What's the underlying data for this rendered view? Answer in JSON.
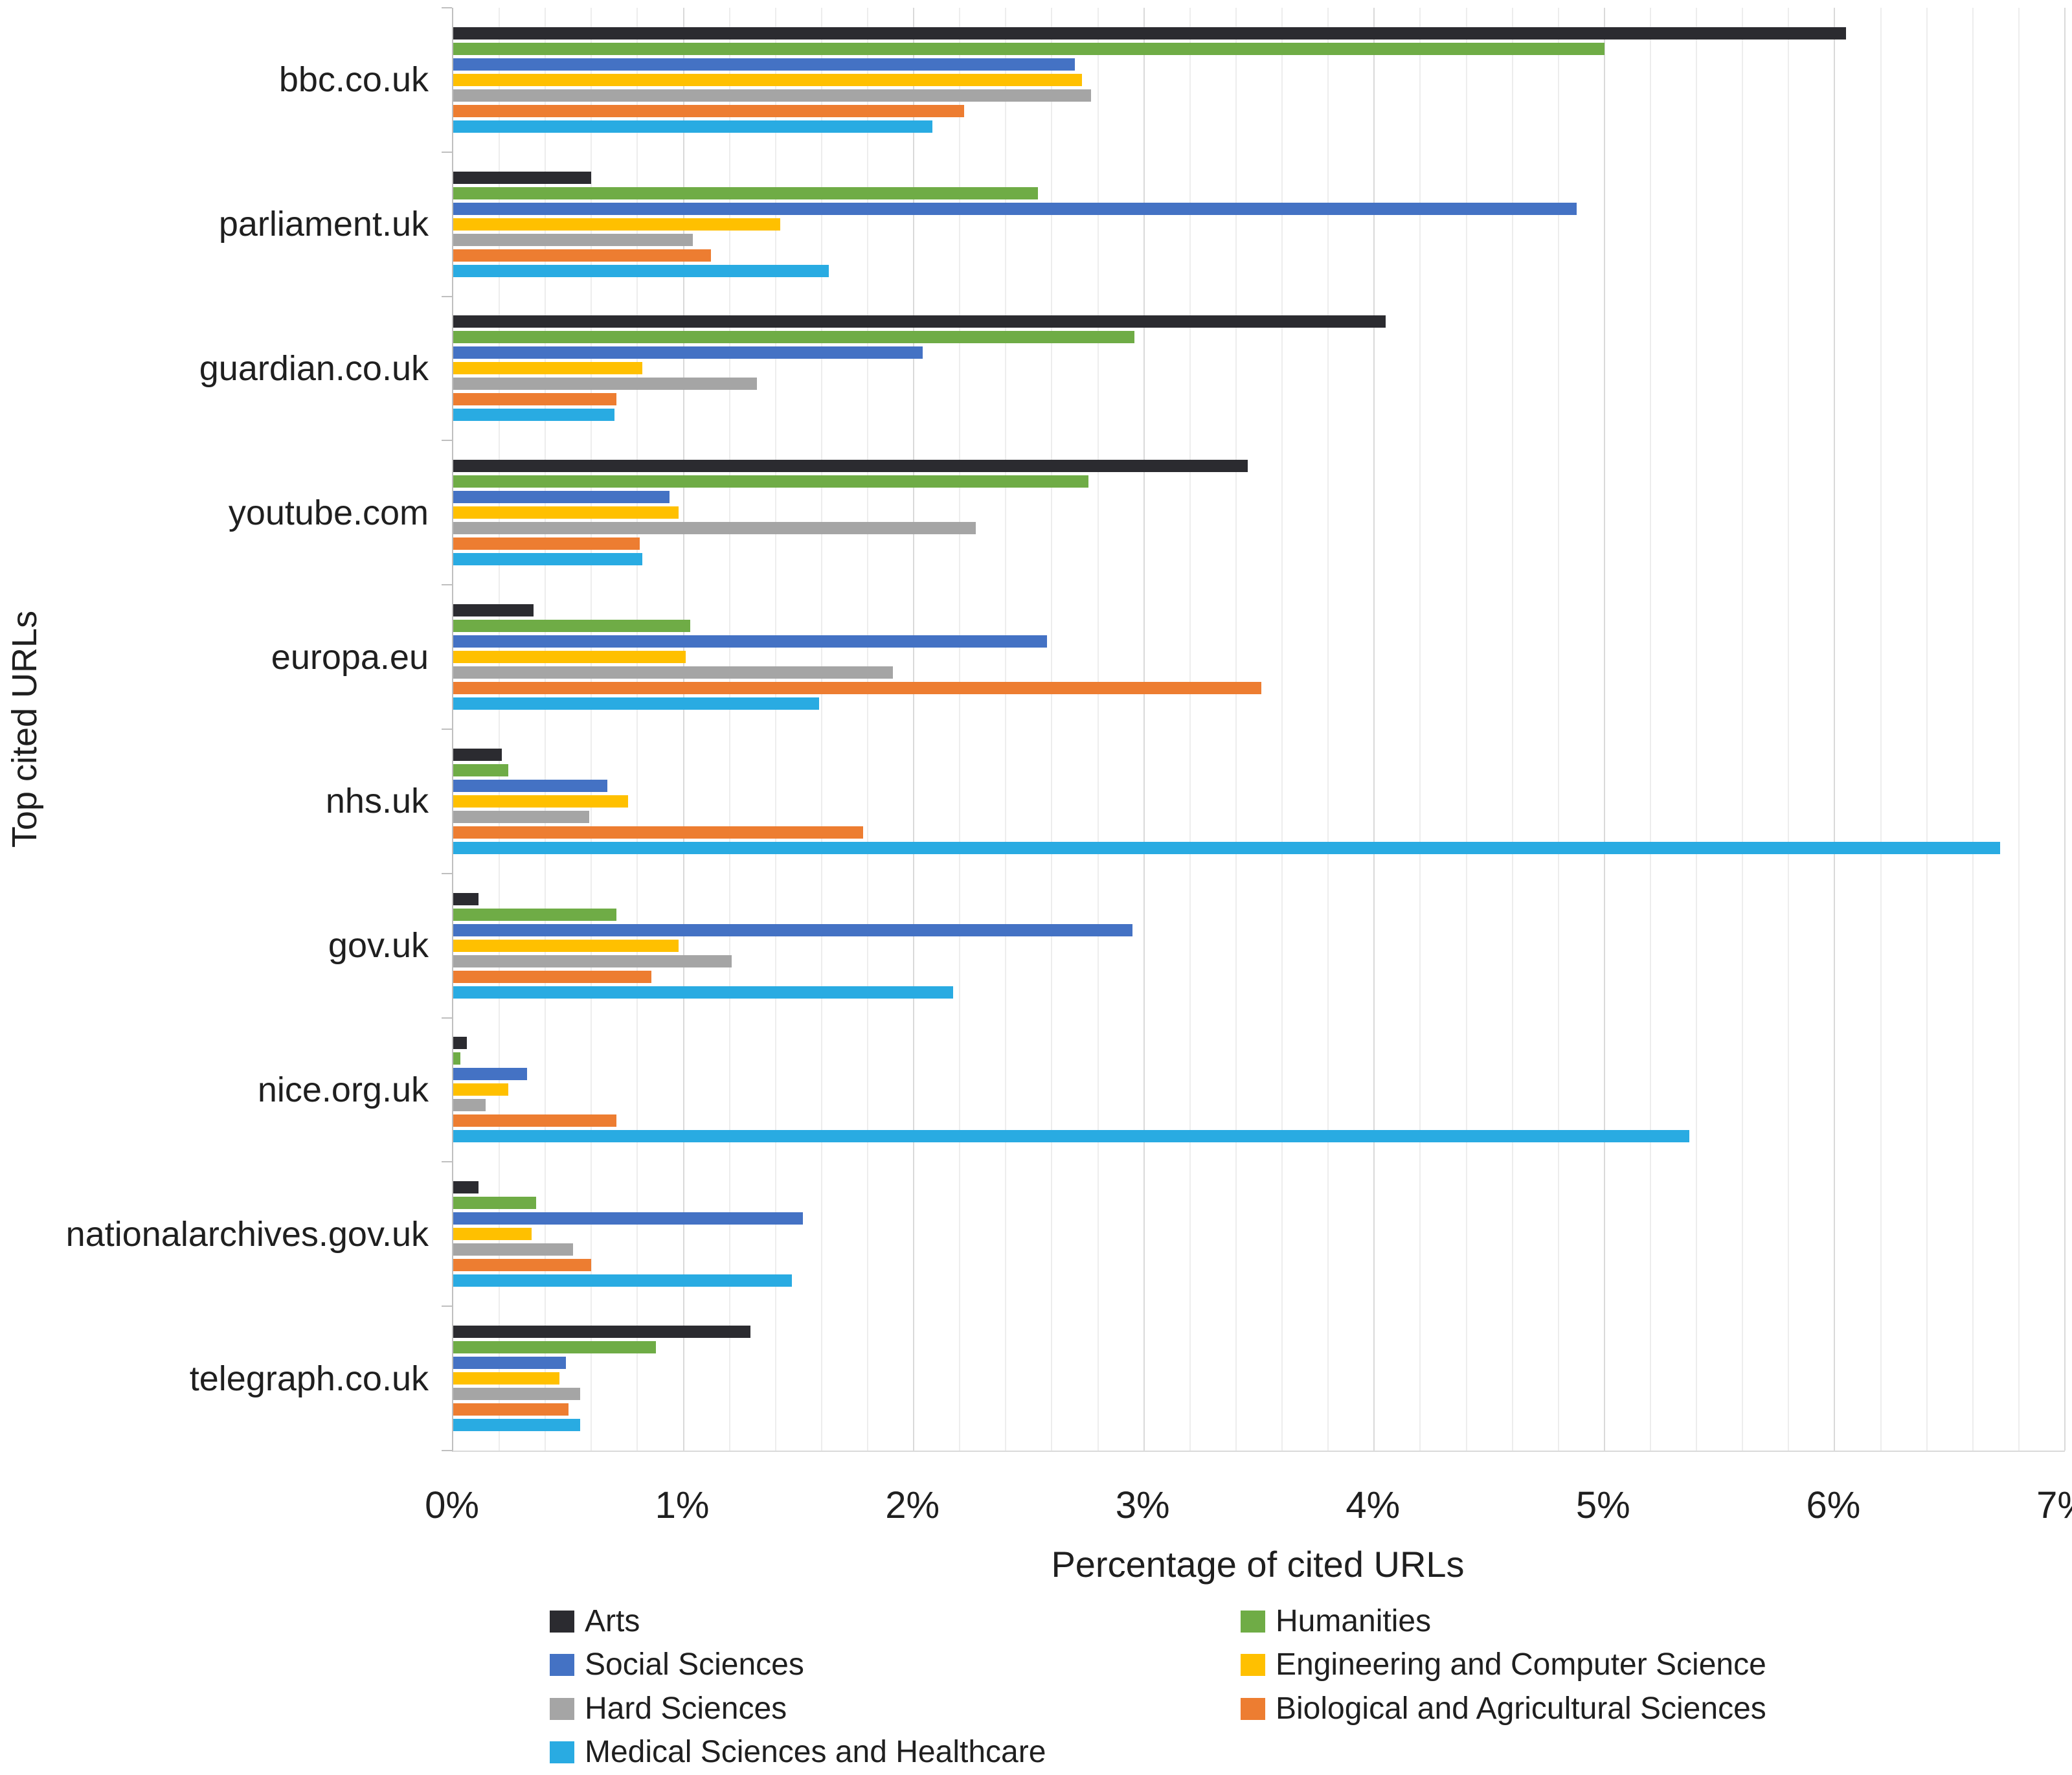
{
  "chart_data": {
    "type": "bar",
    "orientation": "horizontal-grouped",
    "categories": [
      "bbc.co.uk",
      "parliament.uk",
      "guardian.co.uk",
      "youtube.com",
      "europa.eu",
      "nhs.uk",
      "gov.uk",
      "nice.org.uk",
      "nationalarchives.gov.uk",
      "telegraph.co.uk"
    ],
    "series": [
      {
        "name": "Arts",
        "color": "#2b2b30",
        "values": [
          6.05,
          0.6,
          4.05,
          3.45,
          0.35,
          0.21,
          0.11,
          0.06,
          0.11,
          1.29
        ]
      },
      {
        "name": "Humanities",
        "color": "#6fac46",
        "values": [
          5.0,
          2.54,
          2.96,
          2.76,
          1.03,
          0.24,
          0.71,
          0.03,
          0.36,
          0.88
        ]
      },
      {
        "name": "Social Sciences",
        "color": "#4472c4",
        "values": [
          2.7,
          4.88,
          2.04,
          0.94,
          2.58,
          0.67,
          2.95,
          0.32,
          1.52,
          0.49
        ]
      },
      {
        "name": "Engineering and Computer Science",
        "color": "#ffc000",
        "values": [
          2.73,
          1.42,
          0.82,
          0.98,
          1.01,
          0.76,
          0.98,
          0.24,
          0.34,
          0.46
        ]
      },
      {
        "name": "Hard Sciences",
        "color": "#a5a5a5",
        "values": [
          2.77,
          1.04,
          1.32,
          2.27,
          1.91,
          0.59,
          1.21,
          0.14,
          0.52,
          0.55
        ]
      },
      {
        "name": "Biological and Agricultural Sciences",
        "color": "#ed7d31",
        "values": [
          2.22,
          1.12,
          0.71,
          0.81,
          3.51,
          1.78,
          0.86,
          0.71,
          0.6,
          0.5
        ]
      },
      {
        "name": "Medical Sciences and Healthcare",
        "color": "#29abe2",
        "values": [
          2.08,
          1.63,
          0.7,
          0.82,
          1.59,
          6.72,
          2.17,
          5.37,
          1.47,
          0.55
        ]
      }
    ],
    "xlabel": "Percentage of cited URLs",
    "ylabel": "Top cited URLs",
    "xaxis": {
      "min": 0,
      "max": 7,
      "major_step": 1,
      "minor_step": 0.2,
      "ticks": [
        "0%",
        "1%",
        "2%",
        "3%",
        "4%",
        "5%",
        "6%",
        "7%"
      ]
    },
    "grid": "vertical, minor every 0.2%, major every 1%",
    "legend": {
      "position": "bottom",
      "columns": [
        [
          "Arts",
          "Social Sciences",
          "Hard Sciences",
          "Medical Sciences and Healthcare"
        ],
        [
          "Humanities",
          "Engineering and Computer Science",
          "Biological and Agricultural Sciences"
        ]
      ]
    }
  }
}
